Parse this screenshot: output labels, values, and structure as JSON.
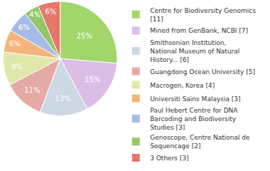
{
  "chart_data": {
    "type": "pie",
    "categories": [
      "Centre for Biodiversity Genomics [11]",
      "Mined from GenBank, NCBI [7]",
      "Smithsonian Institution, National Museum of Natural History... [6]",
      "Guangdong Ocean University [5]",
      "Macrogen, Korea [4]",
      "Universiti Sains Malaysia [3]",
      "Paul Hebert Centre for DNA Barcoding and Biodiversity Studies [3]",
      "Genoscope, Centre National de Sequencage [2]",
      "3 Others [3]"
    ],
    "values": [
      25,
      15,
      13,
      11,
      9,
      6,
      6,
      4,
      6
    ],
    "value_labels": [
      "25%",
      "15%",
      "13%",
      "11%",
      "9%",
      "6%",
      "6%",
      "4%",
      "6%"
    ],
    "data_labels": true,
    "colors": [
      "#a2d66a",
      "#dcbde6",
      "#ccd8e4",
      "#e5aaa3",
      "#dfe8a9",
      "#f4b47a",
      "#a5bde6",
      "#95c667",
      "#e5786a"
    ],
    "legend": "right"
  }
}
